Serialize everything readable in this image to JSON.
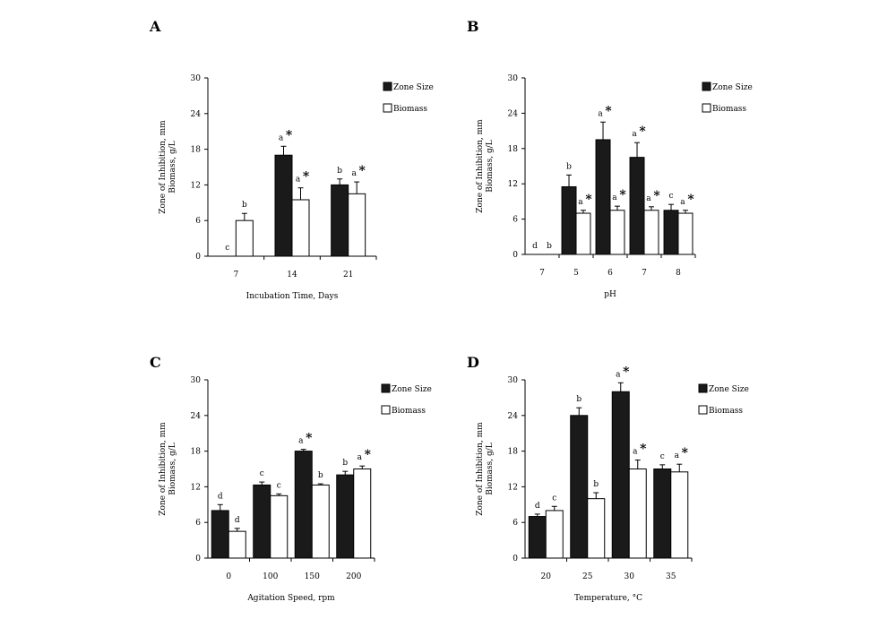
{
  "legend": {
    "zone_label": "Zone Size",
    "biomass_label": "Biomass"
  },
  "ylabel_line1": "Zone of Inhibition, mm",
  "ylabel_line2": "Biomass, g/L",
  "colors": {
    "zone": "#1a1a1a",
    "biomass": "#ffffff",
    "axis": "#000000"
  },
  "chart_data": [
    {
      "panel": "A",
      "type": "bar",
      "xlabel": "Incubation Time, Days",
      "categories": [
        "7",
        "14",
        "21"
      ],
      "ylim": [
        0,
        30
      ],
      "yticks": [
        0,
        6,
        12,
        18,
        24,
        30
      ],
      "grid": false,
      "legend_position": "top-right",
      "series": [
        {
          "name": "Zone Size",
          "values": [
            0,
            17,
            12
          ],
          "errors": [
            0,
            1.5,
            1.0
          ],
          "sig": [
            "c",
            "a",
            "b"
          ],
          "star": [
            false,
            true,
            false
          ]
        },
        {
          "name": "Biomass",
          "values": [
            6,
            9.5,
            10.5
          ],
          "errors": [
            1.2,
            2.0,
            2.0
          ],
          "sig": [
            "b",
            "a",
            "a"
          ],
          "star": [
            false,
            true,
            true
          ]
        }
      ]
    },
    {
      "panel": "B",
      "type": "bar",
      "xlabel": "pH",
      "categories": [
        "7",
        "5",
        "6",
        "7",
        "8"
      ],
      "ylim": [
        0,
        30
      ],
      "yticks": [
        0,
        6,
        12,
        18,
        24,
        30
      ],
      "grid": false,
      "legend_position": "top-right",
      "series": [
        {
          "name": "Zone Size",
          "values": [
            0,
            11.5,
            19.5,
            16.5,
            7.5
          ],
          "errors": [
            0,
            2.0,
            3.0,
            2.5,
            1.0
          ],
          "sig": [
            "d",
            "b",
            "a",
            "a",
            "c"
          ],
          "star": [
            false,
            false,
            true,
            true,
            false
          ]
        },
        {
          "name": "Biomass",
          "values": [
            0,
            7,
            7.5,
            7.5,
            7
          ],
          "errors": [
            0,
            0.5,
            0.7,
            0.6,
            0.5
          ],
          "sig": [
            "b",
            "a",
            "a",
            "a",
            "a"
          ],
          "star": [
            false,
            true,
            true,
            true,
            true
          ]
        }
      ]
    },
    {
      "panel": "C",
      "type": "bar",
      "xlabel": "Agitation Speed, rpm",
      "categories": [
        "0",
        "100",
        "150",
        "200"
      ],
      "ylim": [
        0,
        30
      ],
      "yticks": [
        0,
        6,
        12,
        18,
        24,
        30
      ],
      "grid": false,
      "legend_position": "top-right",
      "series": [
        {
          "name": "Zone Size",
          "values": [
            8,
            12.3,
            18,
            14
          ],
          "errors": [
            1.0,
            0.5,
            0.3,
            0.6
          ],
          "sig": [
            "d",
            "c",
            "a",
            "b"
          ],
          "star": [
            false,
            false,
            true,
            false
          ]
        },
        {
          "name": "Biomass",
          "values": [
            4.5,
            10.5,
            12.3,
            15
          ],
          "errors": [
            0.5,
            0.3,
            0.2,
            0.5
          ],
          "sig": [
            "d",
            "c",
            "b",
            "a"
          ],
          "star": [
            false,
            false,
            false,
            true
          ]
        }
      ]
    },
    {
      "panel": "D",
      "type": "bar",
      "xlabel": "Temperature, °C",
      "categories": [
        "20",
        "25",
        "30",
        "35"
      ],
      "ylim": [
        0,
        30
      ],
      "yticks": [
        0,
        6,
        12,
        18,
        24,
        30
      ],
      "grid": false,
      "legend_position": "top-right",
      "series": [
        {
          "name": "Zone Size",
          "values": [
            7,
            24,
            28,
            15
          ],
          "errors": [
            0.4,
            1.3,
            1.5,
            0.7
          ],
          "sig": [
            "d",
            "b",
            "a",
            "c"
          ],
          "star": [
            false,
            false,
            true,
            false
          ]
        },
        {
          "name": "Biomass",
          "values": [
            8,
            10,
            15,
            14.5
          ],
          "errors": [
            0.7,
            1.0,
            1.5,
            1.3
          ],
          "sig": [
            "c",
            "b",
            "a",
            "a"
          ],
          "star": [
            false,
            false,
            true,
            true
          ]
        }
      ]
    }
  ]
}
